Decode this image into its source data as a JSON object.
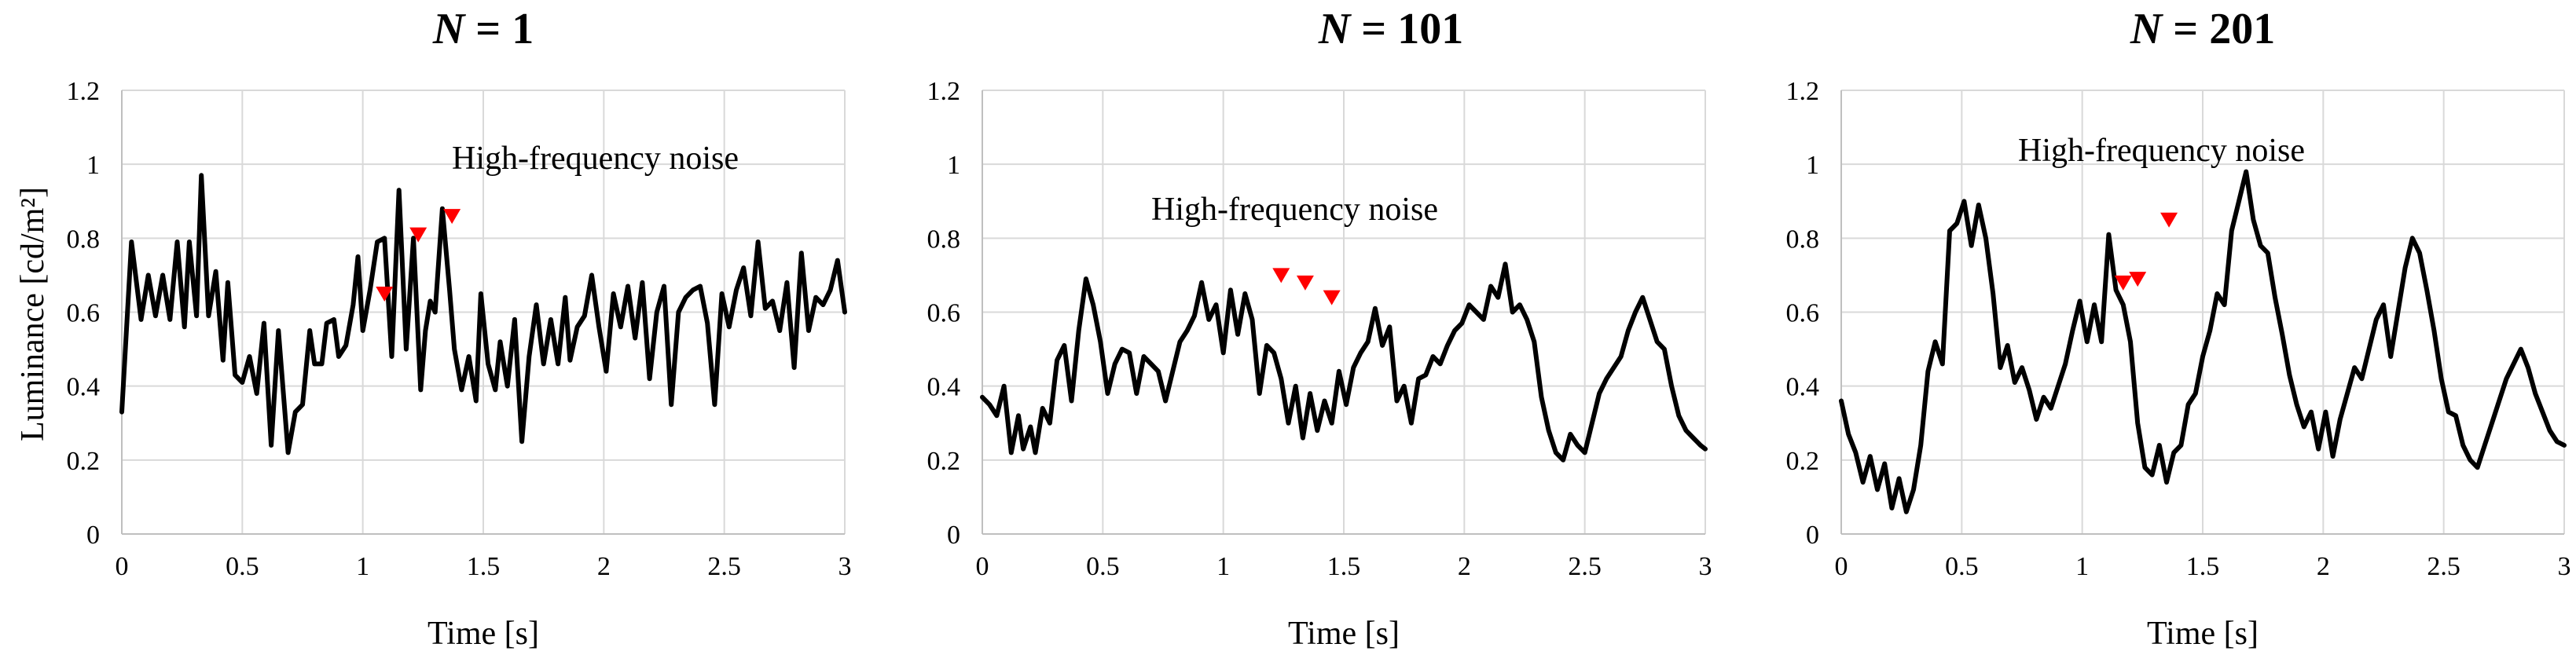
{
  "chart_data": [
    {
      "type": "line",
      "title_var": "N",
      "title_eq": " = ",
      "title_num": "1",
      "xlabel": "Time [s]",
      "ylabel": "Luminance [cd/m²]",
      "xlim": [
        0,
        3
      ],
      "ylim": [
        0,
        1.2
      ],
      "xticks": [
        "0",
        "0.5",
        "1",
        "1.5",
        "2",
        "2.5",
        "3"
      ],
      "yticks": [
        "0",
        "0.2",
        "0.4",
        "0.6",
        "0.8",
        "1",
        "1.2"
      ],
      "grid": true,
      "annotation": "High-frequency noise",
      "markers": [
        {
          "x": 1.09,
          "y": 0.65
        },
        {
          "x": 1.23,
          "y": 0.81
        },
        {
          "x": 1.37,
          "y": 0.86
        }
      ],
      "series": [
        {
          "x": [
            0,
            0.04,
            0.08,
            0.11,
            0.14,
            0.17,
            0.2,
            0.23,
            0.26,
            0.28,
            0.31,
            0.33,
            0.36,
            0.39,
            0.42,
            0.44,
            0.47,
            0.5,
            0.53,
            0.56,
            0.59,
            0.62,
            0.65,
            0.69,
            0.72,
            0.75,
            0.78,
            0.8,
            0.83,
            0.85,
            0.88,
            0.9,
            0.93,
            0.96,
            0.98,
            1.0,
            1.03,
            1.06,
            1.09,
            1.12,
            1.15,
            1.18,
            1.21,
            1.24,
            1.26,
            1.28,
            1.3,
            1.33,
            1.36,
            1.38,
            1.41,
            1.44,
            1.47,
            1.49,
            1.52,
            1.55,
            1.57,
            1.6,
            1.63,
            1.66,
            1.69,
            1.72,
            1.75,
            1.78,
            1.81,
            1.84,
            1.86,
            1.89,
            1.92,
            1.95,
            1.98,
            2.01,
            2.04,
            2.07,
            2.1,
            2.13,
            2.16,
            2.19,
            2.22,
            2.25,
            2.28,
            2.31,
            2.34,
            2.37,
            2.4,
            2.43,
            2.46,
            2.49,
            2.52,
            2.55,
            2.58,
            2.61,
            2.64,
            2.67,
            2.7,
            2.73,
            2.76,
            2.79,
            2.82,
            2.85,
            2.88,
            2.91,
            2.94,
            2.97,
            3.0
          ],
          "y": [
            0.33,
            0.79,
            0.58,
            0.7,
            0.59,
            0.7,
            0.58,
            0.79,
            0.56,
            0.79,
            0.59,
            0.97,
            0.59,
            0.71,
            0.47,
            0.68,
            0.43,
            0.41,
            0.48,
            0.38,
            0.57,
            0.24,
            0.55,
            0.22,
            0.33,
            0.35,
            0.55,
            0.46,
            0.46,
            0.57,
            0.58,
            0.48,
            0.51,
            0.62,
            0.75,
            0.55,
            0.66,
            0.79,
            0.8,
            0.48,
            0.93,
            0.5,
            0.8,
            0.39,
            0.55,
            0.63,
            0.6,
            0.88,
            0.66,
            0.5,
            0.39,
            0.48,
            0.36,
            0.65,
            0.46,
            0.39,
            0.52,
            0.4,
            0.58,
            0.25,
            0.48,
            0.62,
            0.46,
            0.58,
            0.46,
            0.64,
            0.47,
            0.56,
            0.59,
            0.7,
            0.56,
            0.44,
            0.65,
            0.56,
            0.67,
            0.53,
            0.68,
            0.42,
            0.6,
            0.67,
            0.35,
            0.6,
            0.64,
            0.66,
            0.67,
            0.57,
            0.35,
            0.65,
            0.56,
            0.66,
            0.72,
            0.59,
            0.79,
            0.61,
            0.63,
            0.55,
            0.68,
            0.45,
            0.76,
            0.55,
            0.64,
            0.62,
            0.66,
            0.74,
            0.6
          ],
          "color": "#000000"
        }
      ]
    },
    {
      "type": "line",
      "title_var": "N",
      "title_eq": " = ",
      "title_num": "101",
      "xlabel": "Time [s]",
      "ylabel": "",
      "xlim": [
        0,
        3
      ],
      "ylim": [
        0,
        1.2
      ],
      "xticks": [
        "0",
        "0.5",
        "1",
        "1.5",
        "2",
        "2.5",
        "3"
      ],
      "yticks": [
        "0",
        "0.2",
        "0.4",
        "0.6",
        "0.8",
        "1",
        "1.2"
      ],
      "grid": true,
      "annotation": "High-frequency noise",
      "markers": [
        {
          "x": 1.24,
          "y": 0.7
        },
        {
          "x": 1.34,
          "y": 0.68
        },
        {
          "x": 1.45,
          "y": 0.64
        }
      ],
      "series": [
        {
          "x": [
            0,
            0.03,
            0.06,
            0.09,
            0.12,
            0.15,
            0.17,
            0.2,
            0.22,
            0.25,
            0.28,
            0.31,
            0.34,
            0.37,
            0.4,
            0.43,
            0.46,
            0.49,
            0.52,
            0.55,
            0.58,
            0.61,
            0.64,
            0.67,
            0.7,
            0.73,
            0.76,
            0.79,
            0.82,
            0.85,
            0.88,
            0.91,
            0.94,
            0.97,
            1.0,
            1.03,
            1.06,
            1.09,
            1.12,
            1.15,
            1.18,
            1.21,
            1.24,
            1.27,
            1.3,
            1.33,
            1.36,
            1.39,
            1.42,
            1.45,
            1.48,
            1.51,
            1.54,
            1.57,
            1.6,
            1.63,
            1.66,
            1.69,
            1.72,
            1.75,
            1.78,
            1.81,
            1.84,
            1.87,
            1.9,
            1.93,
            1.96,
            1.99,
            2.02,
            2.05,
            2.08,
            2.11,
            2.14,
            2.17,
            2.2,
            2.23,
            2.26,
            2.29,
            2.32,
            2.35,
            2.38,
            2.41,
            2.44,
            2.47,
            2.5,
            2.53,
            2.56,
            2.59,
            2.62,
            2.65,
            2.68,
            2.71,
            2.74,
            2.77,
            2.8,
            2.83,
            2.86,
            2.89,
            2.92,
            2.95,
            2.98,
            3.0
          ],
          "y": [
            0.37,
            0.35,
            0.32,
            0.4,
            0.22,
            0.32,
            0.23,
            0.29,
            0.22,
            0.34,
            0.3,
            0.47,
            0.51,
            0.36,
            0.55,
            0.69,
            0.62,
            0.52,
            0.38,
            0.46,
            0.5,
            0.49,
            0.38,
            0.48,
            0.46,
            0.44,
            0.36,
            0.44,
            0.52,
            0.55,
            0.59,
            0.68,
            0.58,
            0.62,
            0.49,
            0.66,
            0.54,
            0.65,
            0.58,
            0.38,
            0.51,
            0.49,
            0.42,
            0.3,
            0.4,
            0.26,
            0.38,
            0.28,
            0.36,
            0.3,
            0.44,
            0.35,
            0.45,
            0.49,
            0.52,
            0.61,
            0.51,
            0.56,
            0.36,
            0.4,
            0.3,
            0.42,
            0.43,
            0.48,
            0.46,
            0.51,
            0.55,
            0.57,
            0.62,
            0.6,
            0.58,
            0.67,
            0.64,
            0.73,
            0.6,
            0.62,
            0.58,
            0.52,
            0.37,
            0.28,
            0.22,
            0.2,
            0.27,
            0.24,
            0.22,
            0.3,
            0.38,
            0.42,
            0.45,
            0.48,
            0.55,
            0.6,
            0.64,
            0.58,
            0.52,
            0.5,
            0.4,
            0.32,
            0.28,
            0.26,
            0.24,
            0.23
          ],
          "color": "#000000"
        }
      ]
    },
    {
      "type": "line",
      "title_var": "N",
      "title_eq": " = ",
      "title_num": "201",
      "xlabel": "Time [s]",
      "ylabel": "",
      "xlim": [
        0,
        3
      ],
      "ylim": [
        0,
        1.2
      ],
      "xticks": [
        "0",
        "0.5",
        "1",
        "1.5",
        "2",
        "2.5",
        "3"
      ],
      "yticks": [
        "0",
        "0.2",
        "0.4",
        "0.6",
        "0.8",
        "1",
        "1.2"
      ],
      "grid": true,
      "annotation": "High-frequency noise",
      "markers": [
        {
          "x": 1.17,
          "y": 0.68
        },
        {
          "x": 1.23,
          "y": 0.69
        },
        {
          "x": 1.36,
          "y": 0.85
        }
      ],
      "series": [
        {
          "x": [
            0,
            0.03,
            0.06,
            0.09,
            0.12,
            0.15,
            0.18,
            0.21,
            0.24,
            0.27,
            0.3,
            0.33,
            0.36,
            0.39,
            0.42,
            0.45,
            0.48,
            0.51,
            0.54,
            0.57,
            0.6,
            0.63,
            0.66,
            0.69,
            0.72,
            0.75,
            0.78,
            0.81,
            0.84,
            0.87,
            0.9,
            0.93,
            0.96,
            0.99,
            1.02,
            1.05,
            1.08,
            1.11,
            1.14,
            1.17,
            1.2,
            1.23,
            1.26,
            1.29,
            1.32,
            1.35,
            1.38,
            1.41,
            1.44,
            1.47,
            1.5,
            1.53,
            1.56,
            1.59,
            1.62,
            1.65,
            1.68,
            1.71,
            1.74,
            1.77,
            1.8,
            1.83,
            1.86,
            1.89,
            1.92,
            1.95,
            1.98,
            2.01,
            2.04,
            2.07,
            2.1,
            2.13,
            2.16,
            2.19,
            2.22,
            2.25,
            2.28,
            2.31,
            2.34,
            2.37,
            2.4,
            2.43,
            2.46,
            2.49,
            2.52,
            2.55,
            2.58,
            2.61,
            2.64,
            2.67,
            2.7,
            2.73,
            2.76,
            2.79,
            2.82,
            2.85,
            2.88,
            2.91,
            2.94,
            2.97,
            3.0
          ],
          "y": [
            0.36,
            0.27,
            0.22,
            0.14,
            0.21,
            0.12,
            0.19,
            0.07,
            0.15,
            0.06,
            0.12,
            0.24,
            0.44,
            0.52,
            0.46,
            0.82,
            0.84,
            0.9,
            0.78,
            0.89,
            0.8,
            0.65,
            0.45,
            0.51,
            0.41,
            0.45,
            0.39,
            0.31,
            0.37,
            0.34,
            0.4,
            0.46,
            0.55,
            0.63,
            0.52,
            0.62,
            0.52,
            0.81,
            0.66,
            0.62,
            0.52,
            0.3,
            0.18,
            0.16,
            0.24,
            0.14,
            0.22,
            0.24,
            0.35,
            0.38,
            0.48,
            0.55,
            0.65,
            0.62,
            0.82,
            0.9,
            0.98,
            0.85,
            0.78,
            0.76,
            0.64,
            0.54,
            0.43,
            0.35,
            0.29,
            0.33,
            0.23,
            0.33,
            0.21,
            0.31,
            0.38,
            0.45,
            0.42,
            0.5,
            0.58,
            0.62,
            0.48,
            0.6,
            0.72,
            0.8,
            0.76,
            0.66,
            0.55,
            0.42,
            0.33,
            0.32,
            0.24,
            0.2,
            0.18,
            0.24,
            0.3,
            0.36,
            0.42,
            0.46,
            0.5,
            0.45,
            0.38,
            0.33,
            0.28,
            0.25,
            0.24
          ],
          "color": "#000000"
        }
      ]
    }
  ]
}
